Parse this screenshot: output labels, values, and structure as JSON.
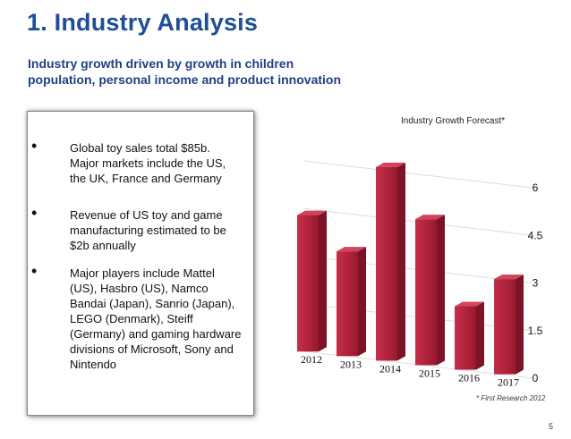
{
  "slide": {
    "title": "1. Industry Analysis",
    "subtitle_line1": "Industry growth driven by growth in children",
    "subtitle_line2": "population, personal income and product innovation",
    "footnote": "* First Research 2012",
    "page_number": "5"
  },
  "bullets": [
    {
      "dot": "•",
      "lines": [
        "Global toy sales total $85b.",
        "Major markets include the US,",
        "the UK, France and Germany"
      ]
    },
    {
      "dot": "•",
      "lines": [
        "Revenue of US toy and game",
        "manufacturing estimated to be",
        "$2b annually"
      ]
    },
    {
      "dot": "•",
      "lines": [
        " Major players include Mattel",
        "(US), Hasbro (US), Namco",
        "Bandai (Japan), Sanrio (Japan),",
        "LEGO (Denmark), Steiff",
        "(Germany) and gaming hardware",
        "divisions of Microsoft, Sony and",
        "Nintendo"
      ]
    }
  ],
  "chart_data": {
    "type": "bar",
    "title": "Industry Growth Forecast*",
    "categories": [
      "2012",
      "2013",
      "2014",
      "2015",
      "2016",
      "2017"
    ],
    "values": [
      4.3,
      3.3,
      6.1,
      4.6,
      2.0,
      3.0
    ],
    "ylim": [
      0,
      6
    ],
    "yticks": [
      "0",
      "1.5",
      "3",
      "4.5",
      "6"
    ],
    "xlabel": "",
    "ylabel": "",
    "grid": true,
    "bar_color": "#b0223a",
    "bar_dark_color": "#7d1326",
    "bar_light_color": "#d2445b"
  }
}
